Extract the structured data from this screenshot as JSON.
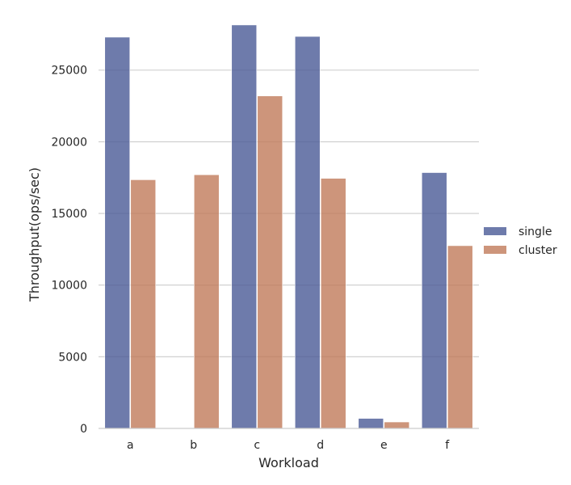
{
  "chart_data": {
    "type": "bar",
    "xlabel": "Workload",
    "ylabel": "Throughput(ops/sec)",
    "categories": [
      "a",
      "b",
      "c",
      "d",
      "e",
      "f"
    ],
    "ylim": [
      0,
      28200
    ],
    "yticks": [
      0,
      5000,
      10000,
      15000,
      20000,
      25000
    ],
    "grid": true,
    "legend_position": "right",
    "series": [
      {
        "name": "single",
        "color": "#4a5a96",
        "values": [
          27300,
          0,
          28150,
          27350,
          700,
          17850
        ]
      },
      {
        "name": "cluster",
        "color": "#c07a5a",
        "values": [
          17350,
          17700,
          23200,
          17450,
          450,
          12750
        ]
      }
    ]
  }
}
